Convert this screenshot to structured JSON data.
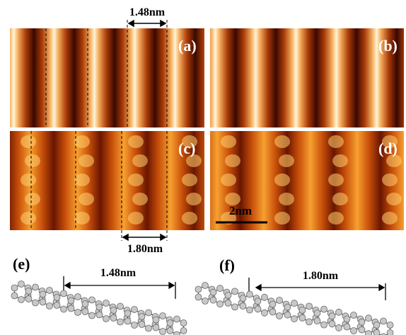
{
  "panels": [
    {
      "label": "(a)"
    },
    {
      "label": "(b)"
    },
    {
      "label": "(c)"
    },
    {
      "label": "(d)"
    }
  ],
  "measurements": {
    "top": "1.48nm",
    "bottom": "1.80nm"
  },
  "scale_bar": "2nm",
  "structures": [
    {
      "label": "(e)",
      "spacing": "1.48nm"
    },
    {
      "label": "(f)",
      "spacing": "1.80nm"
    }
  ]
}
